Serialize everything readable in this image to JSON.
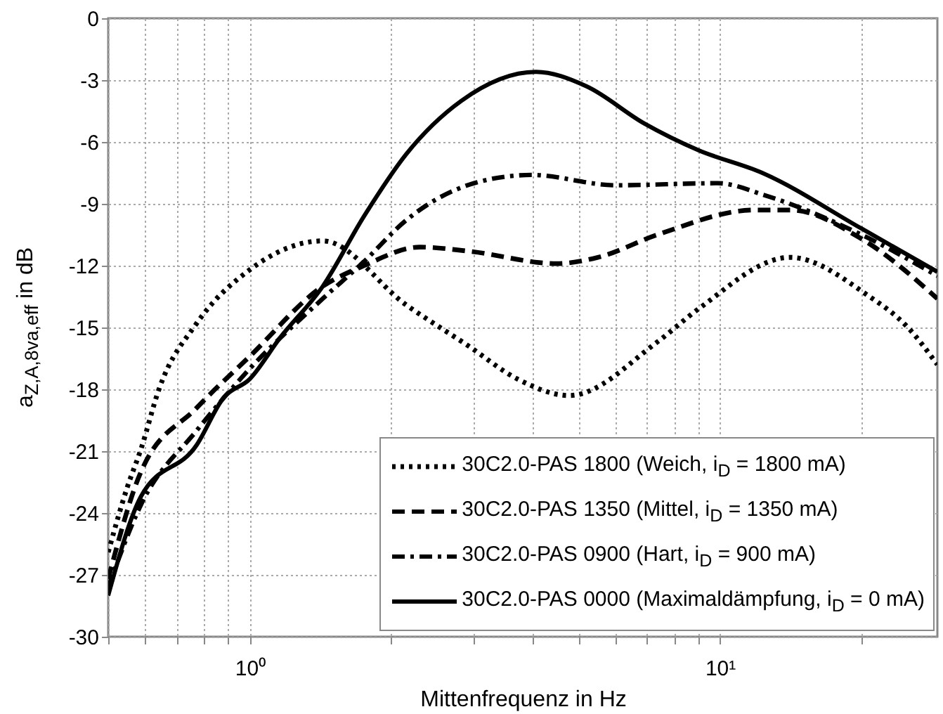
{
  "chart_data": {
    "type": "line",
    "xlabel": "Mittenfrequenz in Hz",
    "ylabel": "a$_{Z,A,8va,eff}$ in dB",
    "log": "x",
    "grid": true,
    "legend": "bottom right",
    "xlim": [
      0.5,
      29
    ],
    "xticks": [
      {
        "value": 0.5,
        "label": null
      },
      {
        "value": 0.6,
        "label": null
      },
      {
        "value": 0.7,
        "label": null
      },
      {
        "value": 0.8,
        "label": null
      },
      {
        "value": 0.9,
        "label": null
      },
      {
        "value": 1,
        "label": "10⁰"
      },
      {
        "value": 2,
        "label": null
      },
      {
        "value": 3,
        "label": null
      },
      {
        "value": 4,
        "label": null
      },
      {
        "value": 5,
        "label": null
      },
      {
        "value": 6,
        "label": null
      },
      {
        "value": 7,
        "label": null
      },
      {
        "value": 8,
        "label": null
      },
      {
        "value": 9,
        "label": null
      },
      {
        "value": 10,
        "label": "10¹"
      },
      {
        "value": 20,
        "label": null
      }
    ],
    "ylim": [
      -30,
      0
    ],
    "yticks": [
      -30,
      -27,
      -24,
      -21,
      -18,
      -15,
      -12,
      -9,
      -6,
      -3,
      0
    ],
    "series": [
      {
        "name": "30C2.0-PAS 1800 (Weich, i$_{D}$ = 1800 mA)",
        "color": "#000000",
        "line_style": "dotted",
        "x": [
          0.5,
          0.548,
          0.587,
          0.641,
          0.771,
          1,
          1.43,
          2.15,
          2.92,
          3.71,
          4.78,
          7.36,
          9.0,
          14.1,
          20.5,
          25.1,
          29
        ],
        "values": [
          -25.9,
          -22.8,
          -20.9,
          -18.0,
          -14.8,
          -12.2,
          -10.8,
          -13.9,
          -15.9,
          -17.5,
          -18.3,
          -15.7,
          -14.1,
          -11.6,
          -13.4,
          -15.0,
          -16.8
        ]
      },
      {
        "name": "30C2.0-PAS 1350 (Mittel, i$_{D}$ = 1350 mA)",
        "color": "#000000",
        "line_style": "dashed",
        "x": [
          0.5,
          0.587,
          0.771,
          1,
          1.43,
          1.75,
          2.3,
          2.92,
          4.5,
          5.5,
          7.36,
          11.9,
          14.1,
          20,
          29
        ],
        "values": [
          -27.2,
          -22.0,
          -18.9,
          -16.4,
          -13.0,
          -12.0,
          -11.1,
          -11.3,
          -11.9,
          -11.6,
          -10.5,
          -9.3,
          -9.3,
          -10.7,
          -13.6
        ]
      },
      {
        "name": "30C2.0-PAS 0900 (Hart, i$_{D}$ = 900 mA)",
        "color": "#000000",
        "line_style": "dashdot",
        "x": [
          0.5,
          0.587,
          0.771,
          1,
          1.43,
          1.75,
          2.15,
          3.0,
          3.97,
          6.0,
          9.9,
          12.5,
          20,
          29
        ],
        "values": [
          -27.6,
          -23.6,
          -20.0,
          -17.0,
          -13.6,
          -11.8,
          -9.8,
          -8.0,
          -7.6,
          -8.1,
          -8.0,
          -8.6,
          -10.5,
          -12.5
        ]
      },
      {
        "name": "30C2.0-PAS 0000 (Maximaldämpfung, i$_{D}$ = 0 mA)",
        "color": "#000000",
        "line_style": "solid",
        "x": [
          0.5,
          0.587,
          0.771,
          0.88,
          1,
          1.16,
          1.43,
          1.75,
          2.15,
          2.82,
          4.06,
          5.2,
          6.9,
          9.0,
          12.3,
          20,
          29
        ],
        "values": [
          -28.0,
          -23.2,
          -20.7,
          -18.4,
          -17.5,
          -15.5,
          -13.0,
          -9.6,
          -6.6,
          -4.0,
          -2.6,
          -3.3,
          -5.1,
          -6.4,
          -7.5,
          -10.2,
          -12.3
        ]
      }
    ]
  }
}
